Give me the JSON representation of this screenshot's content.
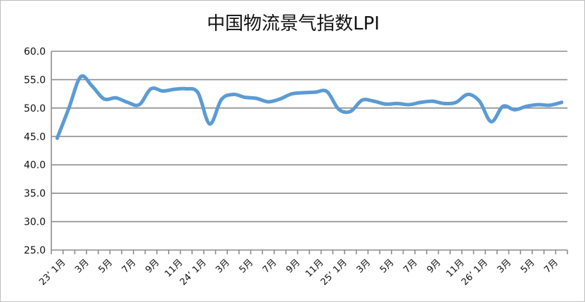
{
  "chart_data": {
    "type": "line",
    "title": "中国物流景气指数LPI",
    "xlabel": "",
    "ylabel": "",
    "ylim": [
      25,
      60
    ],
    "yticks": [
      "25.0",
      "30.0",
      "35.0",
      "40.0",
      "45.0",
      "50.0",
      "55.0",
      "60.0"
    ],
    "grid": true,
    "legend": "none",
    "line_color": "#5b9bd5",
    "x": [
      "23’ 1月",
      "2月",
      "3月",
      "4月",
      "5月",
      "6月",
      "7月",
      "8月",
      "9月",
      "10月",
      "11月",
      "12月",
      "24’ 1月",
      "2月",
      "3月",
      "4月",
      "5月",
      "6月",
      "7月",
      "8月",
      "9月",
      "10月",
      "11月",
      "12月",
      "25’ 1月",
      "2月",
      "3月",
      "4月",
      "5月",
      "6月",
      "7月",
      "8月",
      "9月",
      "10月",
      "11月",
      "12月",
      "26’ 1月",
      "2月",
      "3月",
      "4月",
      "5月",
      "6月",
      "7月",
      "8月"
    ],
    "x_tick_labels": [
      "23’ 1月",
      "3月",
      "5月",
      "7月",
      "9月",
      "11月",
      "24’ 1月",
      "3月",
      "5月",
      "7月",
      "9月",
      "11月",
      "25’ 1月",
      "3月",
      "5月",
      "7月",
      "9月",
      "11月",
      "26’ 1月",
      "3月",
      "5月",
      "7月"
    ],
    "series": [
      {
        "values": [
          44.7,
          50.0,
          55.5,
          53.8,
          51.6,
          51.8,
          51.0,
          50.6,
          53.4,
          53.0,
          53.3,
          53.4,
          52.7,
          47.2,
          51.5,
          52.4,
          51.9,
          51.7,
          51.1,
          51.6,
          52.5,
          52.7,
          52.8,
          52.9,
          49.8,
          49.4,
          51.4,
          51.2,
          50.7,
          50.8,
          50.6,
          51.0,
          51.2,
          50.8,
          51.0,
          52.4,
          51.2,
          47.6,
          50.3,
          49.7,
          50.3,
          50.6,
          50.5,
          51.0
        ]
      }
    ]
  }
}
